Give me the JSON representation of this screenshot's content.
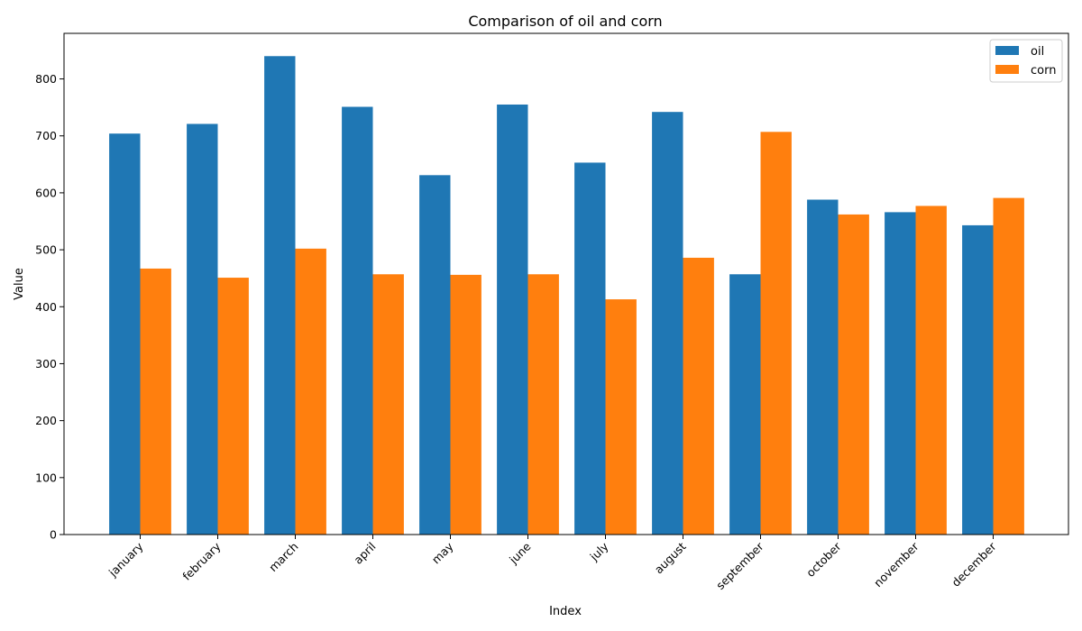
{
  "chart_data": {
    "type": "bar",
    "title": "Comparison of oil and corn",
    "xlabel": "Index",
    "ylabel": "Value",
    "categories": [
      "january",
      "february",
      "march",
      "april",
      "may",
      "june",
      "july",
      "august",
      "september",
      "october",
      "november",
      "december"
    ],
    "series": [
      {
        "name": "oil",
        "color": "#1f77b4",
        "values": [
          704,
          721,
          840,
          751,
          631,
          755,
          653,
          742,
          457,
          588,
          566,
          543
        ]
      },
      {
        "name": "corn",
        "color": "#ff7f0e",
        "values": [
          467,
          451,
          502,
          457,
          456,
          457,
          413,
          486,
          707,
          562,
          577,
          591
        ]
      }
    ],
    "ylim": [
      0,
      880
    ],
    "yticks": [
      0,
      100,
      200,
      300,
      400,
      500,
      600,
      700,
      800
    ],
    "grid": false,
    "legend_position": "top-right"
  }
}
